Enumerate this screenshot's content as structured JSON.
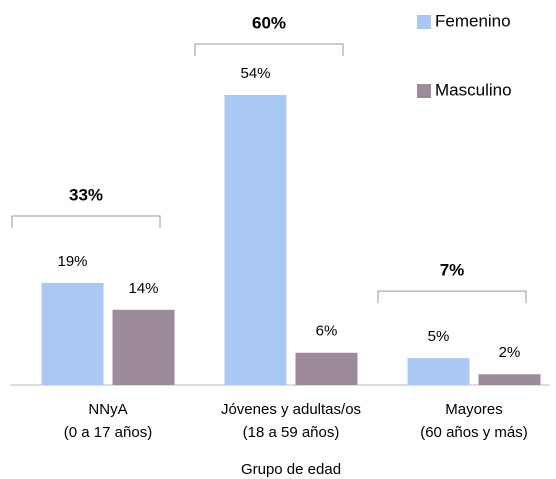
{
  "chart_data": {
    "type": "bar",
    "categories": [
      [
        "NNyA",
        "(0 a 17 años)"
      ],
      [
        "Jóvenes y adultas/os",
        "(18 a 59 años)"
      ],
      [
        "Mayores",
        "(60 años y más)"
      ]
    ],
    "series": [
      {
        "name": "Femenino",
        "color": "#a9c8f4",
        "values": [
          19,
          54,
          5
        ],
        "value_labels": [
          "19%",
          "54%",
          "5%"
        ]
      },
      {
        "name": "Masculino",
        "color": "#9d8b9c",
        "values": [
          14,
          6,
          2
        ],
        "value_labels": [
          "14%",
          "6%",
          "2%"
        ]
      }
    ],
    "totals": {
      "values": [
        33,
        60,
        7
      ],
      "value_labels": [
        "33%",
        "60%",
        "7%"
      ]
    },
    "xlabel": "Grupo de edad",
    "legend": "top-right"
  }
}
